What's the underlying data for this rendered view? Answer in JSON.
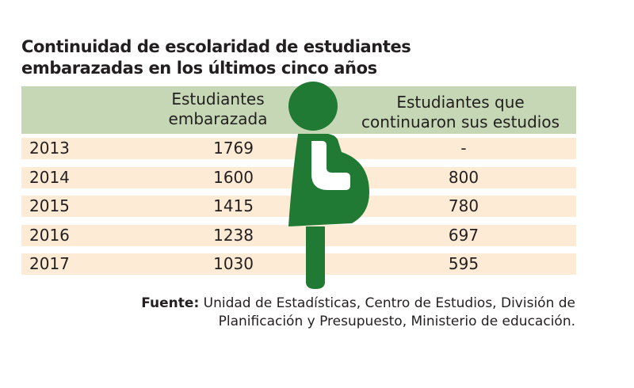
{
  "title_lines": [
    "Continuidad de escolaridad de estudiantes",
    "embarazadas en los últimos cinco años"
  ],
  "columns": {
    "pregnant": [
      "Estudiantes",
      "embarazada"
    ],
    "continued": [
      "Estudiantes que",
      "continuaron sus estudios"
    ]
  },
  "colors": {
    "header_bg": "#c6d7b5",
    "row_bg": "#fdebd6",
    "figure": "#217a34"
  },
  "icon": "pregnant-woman-icon",
  "chart_data": {
    "type": "table",
    "title": "Continuidad de escolaridad de estudiantes embarazadas en los últimos cinco años",
    "columns": [
      "",
      "Estudiantes embarazada",
      "Estudiantes que continuaron sus estudios"
    ],
    "rows": [
      {
        "year": "2013",
        "pregnant": "1769",
        "continued": "-"
      },
      {
        "year": "2014",
        "pregnant": "1600",
        "continued": "800"
      },
      {
        "year": "2015",
        "pregnant": "1415",
        "continued": "780"
      },
      {
        "year": "2016",
        "pregnant": "1238",
        "continued": "697"
      },
      {
        "year": "2017",
        "pregnant": "1030",
        "continued": "595"
      }
    ]
  },
  "source": {
    "label": "Fuente:",
    "line1": "Unidad de Estadísticas, Centro de Estudios, División de",
    "line2": "Planificación y Presupuesto, Ministerio de educación."
  }
}
